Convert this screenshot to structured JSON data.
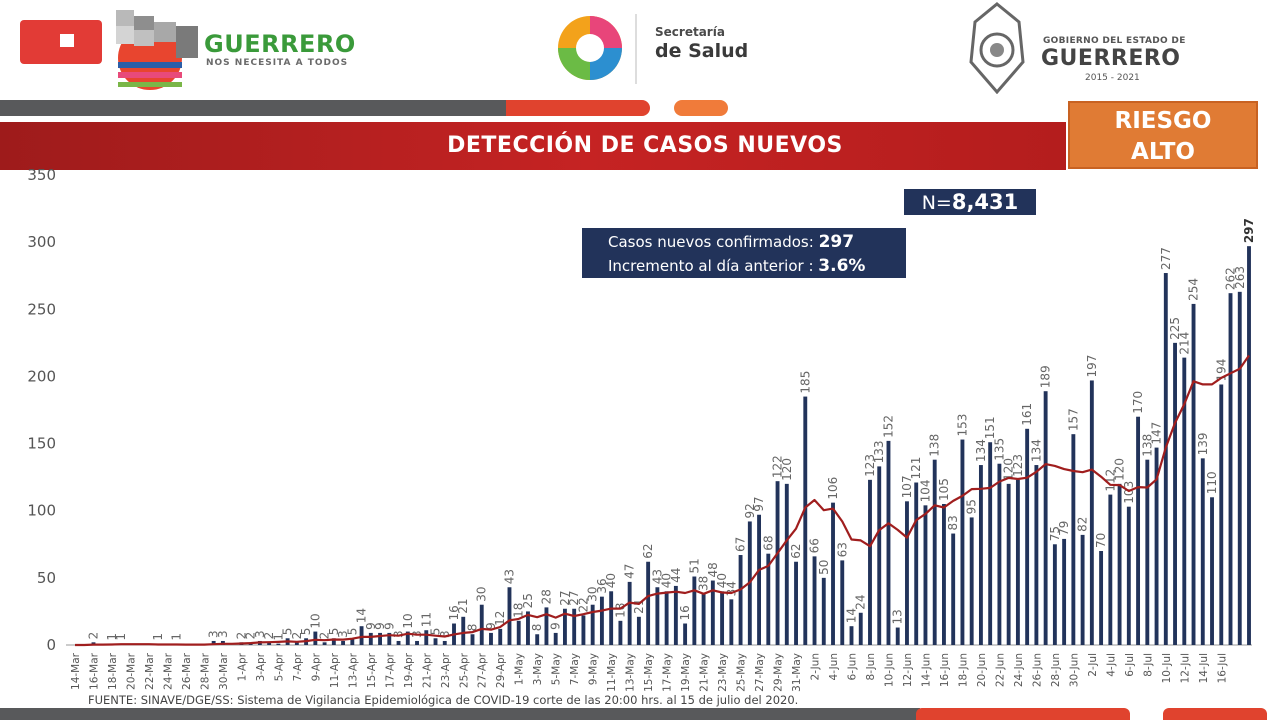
{
  "header": {
    "left_logo_word": "GUERRERO",
    "left_logo_tagline": "NOS NECESITA A TODOS",
    "center_logo_line1": "Secretaría",
    "center_logo_line2": "de Salud",
    "right_logo_line1": "GOBIERNO DEL ESTADO DE",
    "right_logo_line2": "GUERRERO",
    "right_logo_years": "2015 - 2021"
  },
  "title": "DETECCIÓN DE CASOS NUEVOS",
  "risk": {
    "line1": "RIESGO",
    "line2": "ALTO"
  },
  "total": {
    "prefix": "N=",
    "value": "8,431"
  },
  "info": {
    "line1_label": "Casos nuevos confirmados:",
    "line1_value": "297",
    "line2_label": "Incremento al día anterior :",
    "line2_value": "3.6%"
  },
  "source": "FUENTE: SINAVE/DGE/SS: Sistema de Vigilancia Epidemiológica de COVID-19 corte de las 20:00 hrs. al 15 de julio del 2020.",
  "colors": {
    "bar": "#22335a",
    "moving_average": "#a01e1e",
    "title_band": "#c52323",
    "risk_box": "#e07b34"
  },
  "chart_data": {
    "type": "bar",
    "ylim": [
      0,
      350
    ],
    "yticks": [
      0,
      50,
      100,
      150,
      200,
      250,
      300,
      350
    ],
    "start_date": "14-Mar",
    "x_tick_labels": [
      "14-Mar",
      "16-Mar",
      "18-Mar",
      "20-Mar",
      "22-Mar",
      "24-Mar",
      "26-Mar",
      "28-Mar",
      "30-Mar",
      "1-Apr",
      "3-Apr",
      "5-Apr",
      "7-Apr",
      "9-Apr",
      "11-Apr",
      "13-Apr",
      "15-Apr",
      "17-Apr",
      "19-Apr",
      "21-Apr",
      "23-Apr",
      "25-Apr",
      "27-Apr",
      "29-Apr",
      "1-May",
      "3-May",
      "5-May",
      "7-May",
      "9-May",
      "11-May",
      "13-May",
      "15-May",
      "17-May",
      "19-May",
      "21-May",
      "23-May",
      "25-May",
      "27-May",
      "29-May",
      "31-May",
      "2-Jun",
      "4-Jun",
      "6-Jun",
      "8-Jun",
      "10-Jun",
      "12-Jun",
      "14-Jun",
      "16-Jun",
      "18-Jun",
      "20-Jun",
      "22-Jun",
      "24-Jun",
      "26-Jun",
      "28-Jun",
      "30-Jun",
      "2-Jul",
      "4-Jul",
      "6-Jul",
      "8-Jul",
      "10-Jul",
      "12-Jul",
      "14-Jul",
      "16-Jul"
    ],
    "values": [
      0,
      0,
      2,
      0,
      1,
      1,
      0,
      0,
      0,
      1,
      0,
      1,
      0,
      0,
      0,
      3,
      3,
      0,
      2,
      2,
      3,
      2,
      1,
      5,
      2,
      5,
      10,
      2,
      5,
      3,
      5,
      14,
      9,
      9,
      9,
      3,
      10,
      3,
      11,
      5,
      3,
      16,
      21,
      8,
      30,
      9,
      12,
      43,
      18,
      25,
      8,
      28,
      9,
      27,
      27,
      22,
      30,
      36,
      40,
      18,
      47,
      21,
      62,
      43,
      40,
      44,
      16,
      51,
      38,
      48,
      40,
      34,
      67,
      92,
      97,
      68,
      122,
      120,
      62,
      185,
      66,
      50,
      106,
      63,
      14,
      24,
      123,
      133,
      152,
      13,
      107,
      121,
      104,
      138,
      105,
      83,
      153,
      95,
      134,
      151,
      135,
      120,
      123,
      161,
      134,
      189,
      75,
      79,
      157,
      82,
      197,
      70,
      112,
      120,
      103,
      170,
      138,
      147,
      277,
      225,
      214,
      254,
      139,
      110,
      194,
      262,
      263,
      297
    ],
    "moving_average": [
      0,
      0,
      0.3,
      0.3,
      0.4,
      0.6,
      0.6,
      0.6,
      0.6,
      0.4,
      0.4,
      0.4,
      0.3,
      0.3,
      0.3,
      0.6,
      0.9,
      0.9,
      1.1,
      1.4,
      1.9,
      2.1,
      2.3,
      2.7,
      2.4,
      2.9,
      3.9,
      3.6,
      4.1,
      4.0,
      4.7,
      6.0,
      6.0,
      6.7,
      7.3,
      6.9,
      8.4,
      7.7,
      7.7,
      6.9,
      6.3,
      7.9,
      9.0,
      9.6,
      12.0,
      11.4,
      13.4,
      18.4,
      19.4,
      22.4,
      20.7,
      22.9,
      20.4,
      23.3,
      21.6,
      22.9,
      24.6,
      25.6,
      27.1,
      27.1,
      31.6,
      30.6,
      36.4,
      38.3,
      39.0,
      39.7,
      38.7,
      40.7,
      38.1,
      40.7,
      39.1,
      38.7,
      41.4,
      46.6,
      55.9,
      58.9,
      68.4,
      78.0,
      86.6,
      102.4,
      108.0,
      100.4,
      101.6,
      92.0,
      78.6,
      77.9,
      73.6,
      85.6,
      90.6,
      85.7,
      80.0,
      92.9,
      97.6,
      104.0,
      102.4,
      107.3,
      111.0,
      116.1,
      116.3,
      117.0,
      121.7,
      124.4,
      123.6,
      124.6,
      129.0,
      134.7,
      133.4,
      131.0,
      129.6,
      128.7,
      130.6,
      125.3,
      119.3,
      119.1,
      114.7,
      117.6,
      117.3,
      123.4,
      147.1,
      165.3,
      179.4,
      196.4,
      194.1,
      194.1,
      198.9,
      202.3,
      205.7,
      215.6
    ]
  }
}
